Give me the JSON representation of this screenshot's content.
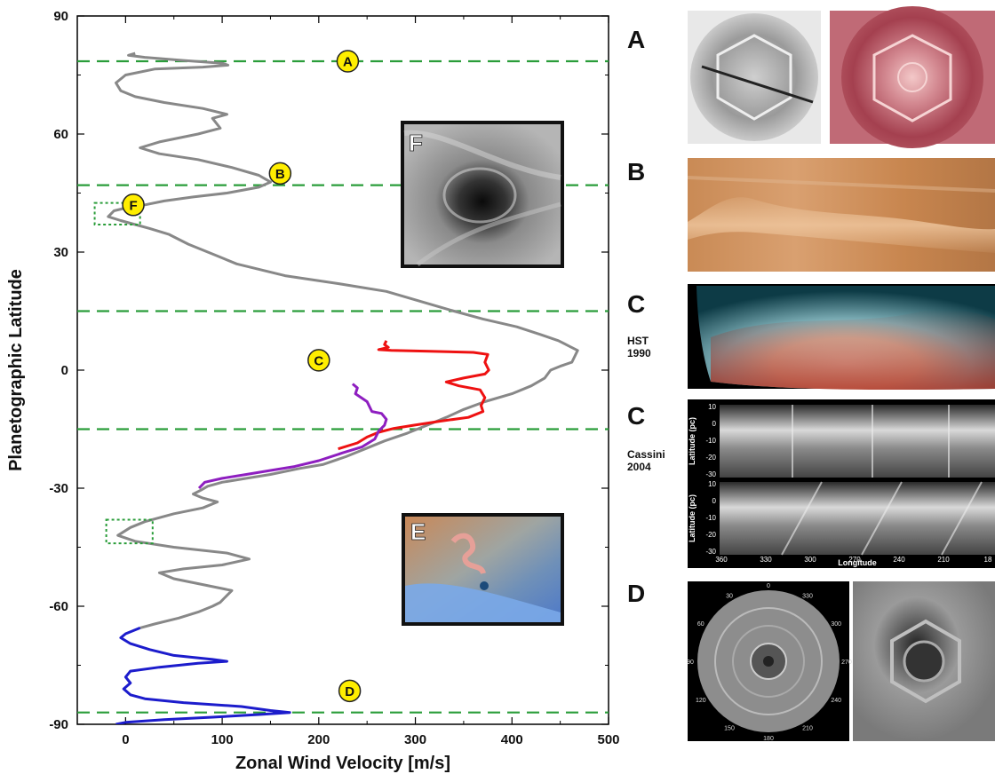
{
  "chart_data": {
    "type": "line",
    "xlabel": "Zonal Wind Velocity [m/s]",
    "ylabel": "Planetographic Latitude",
    "xlim": [
      -50,
      500
    ],
    "ylim": [
      -90,
      90
    ],
    "xticks": [
      0,
      100,
      200,
      300,
      400,
      500
    ],
    "yticks": [
      90,
      60,
      30,
      0,
      -30,
      -60,
      -90
    ],
    "grid": false,
    "legend": "none",
    "colors": {
      "profile_gray": "#888888",
      "profile_blue": "#1c1ccc",
      "profile_red": "#ee1111",
      "profile_purple": "#8e1ec0",
      "reference_lines": "#2a9d3a",
      "marker_fill": "#ffee00"
    },
    "series": [
      {
        "points": [
          [
            10,
            80.5
          ],
          [
            3,
            80
          ],
          [
            20,
            79.5
          ],
          [
            60,
            78.7
          ],
          [
            100,
            78
          ],
          [
            106,
            77.5
          ],
          [
            80,
            77
          ],
          [
            30,
            76.5
          ],
          [
            0,
            75
          ],
          [
            -10,
            73
          ],
          [
            -5,
            71
          ],
          [
            10,
            69.5
          ],
          [
            40,
            68
          ],
          [
            80,
            66.5
          ],
          [
            105,
            65
          ],
          [
            90,
            64
          ],
          [
            98,
            61.5
          ],
          [
            75,
            60
          ],
          [
            35,
            58
          ],
          [
            15,
            56.5
          ],
          [
            35,
            55
          ],
          [
            75,
            53.5
          ],
          [
            110,
            51.5
          ],
          [
            138,
            49.5
          ],
          [
            150,
            47.8
          ],
          [
            138,
            46.5
          ],
          [
            105,
            45
          ],
          [
            70,
            44
          ],
          [
            40,
            43
          ],
          [
            20,
            42
          ],
          [
            5,
            41.5
          ],
          [
            -12,
            40.5
          ],
          [
            -18,
            39
          ],
          [
            -5,
            38
          ],
          [
            10,
            37
          ],
          [
            25,
            36
          ],
          [
            45,
            34.5
          ],
          [
            65,
            32
          ],
          [
            95,
            29
          ],
          [
            115,
            27
          ],
          [
            165,
            24
          ],
          [
            220,
            22
          ],
          [
            270,
            20
          ],
          [
            305,
            17.5
          ],
          [
            340,
            15
          ],
          [
            370,
            13
          ],
          [
            405,
            11
          ],
          [
            430,
            9
          ],
          [
            448,
            7.5
          ],
          [
            460,
            6
          ],
          [
            468,
            5
          ],
          [
            462,
            2
          ],
          [
            450,
            1
          ],
          [
            440,
            0
          ],
          [
            434,
            -2
          ],
          [
            420,
            -4
          ],
          [
            400,
            -6
          ],
          [
            372,
            -8
          ],
          [
            350,
            -10
          ],
          [
            332,
            -12
          ],
          [
            312,
            -14
          ],
          [
            292,
            -16
          ],
          [
            268,
            -18
          ],
          [
            248,
            -20
          ],
          [
            228,
            -22
          ],
          [
            204,
            -24
          ],
          [
            180,
            -25
          ],
          [
            150,
            -26.5
          ],
          [
            125,
            -27.5
          ],
          [
            100,
            -28.5
          ],
          [
            85,
            -29.5
          ],
          [
            78,
            -30.5
          ],
          [
            70,
            -31.5
          ],
          [
            80,
            -32.5
          ],
          [
            95,
            -33.5
          ],
          [
            80,
            -35
          ],
          [
            50,
            -36.5
          ],
          [
            20,
            -38.5
          ],
          [
            5,
            -40
          ],
          [
            -8,
            -42
          ],
          [
            10,
            -43.5
          ],
          [
            50,
            -45
          ],
          [
            105,
            -46.5
          ],
          [
            128,
            -48
          ],
          [
            100,
            -49.5
          ],
          [
            60,
            -50.5
          ],
          [
            35,
            -51.5
          ],
          [
            50,
            -53
          ],
          [
            80,
            -54.5
          ],
          [
            110,
            -56
          ],
          [
            104,
            -57.5
          ],
          [
            98,
            -59
          ],
          [
            90,
            -60
          ],
          [
            75,
            -61.5
          ],
          [
            55,
            -63
          ],
          [
            30,
            -64.5
          ],
          [
            15,
            -65.5
          ]
        ]
      },
      {
        "points": [
          [
            15,
            -65.5
          ],
          [
            0,
            -67
          ],
          [
            -5,
            -68
          ],
          [
            5,
            -69.5
          ],
          [
            25,
            -71
          ],
          [
            50,
            -72.5
          ],
          [
            90,
            -73.5
          ],
          [
            105,
            -74
          ],
          [
            75,
            -74.5
          ],
          [
            35,
            -75.5
          ],
          [
            5,
            -76.5
          ],
          [
            0,
            -78
          ],
          [
            5,
            -79.5
          ],
          [
            -2,
            -81
          ],
          [
            5,
            -82.5
          ],
          [
            20,
            -83.5
          ],
          [
            60,
            -84.5
          ],
          [
            120,
            -85.5
          ],
          [
            150,
            -86.5
          ],
          [
            170,
            -87
          ],
          [
            140,
            -87.5
          ],
          [
            90,
            -88.2
          ],
          [
            40,
            -88.8
          ],
          [
            0,
            -89.5
          ],
          [
            -10,
            -90
          ]
        ]
      },
      {
        "points": [
          [
            270,
            7.5
          ],
          [
            268,
            6.5
          ],
          [
            272,
            5.8
          ],
          [
            262,
            5.2
          ],
          [
            275,
            5
          ],
          [
            315,
            4.8
          ],
          [
            360,
            4.5
          ],
          [
            375,
            4
          ],
          [
            372,
            2
          ],
          [
            376,
            0
          ],
          [
            372,
            -1
          ],
          [
            350,
            -2
          ],
          [
            332,
            -3
          ],
          [
            345,
            -4
          ],
          [
            367,
            -5
          ],
          [
            372,
            -7
          ],
          [
            368,
            -9
          ],
          [
            370,
            -10.5
          ],
          [
            355,
            -12
          ],
          [
            325,
            -13
          ],
          [
            298,
            -14
          ],
          [
            278,
            -14.8
          ],
          [
            262,
            -15.8
          ],
          [
            250,
            -17
          ],
          [
            240,
            -18.5
          ],
          [
            220,
            -20
          ]
        ]
      },
      {
        "points": [
          [
            235,
            -3.5
          ],
          [
            240,
            -4.5
          ],
          [
            238,
            -6
          ],
          [
            250,
            -8
          ],
          [
            255,
            -10.5
          ],
          [
            265,
            -11
          ],
          [
            270,
            -12.5
          ],
          [
            268,
            -14
          ],
          [
            262,
            -15.5
          ],
          [
            258,
            -17.5
          ],
          [
            245,
            -19.5
          ],
          [
            225,
            -21
          ],
          [
            200,
            -23
          ],
          [
            175,
            -24.5
          ],
          [
            150,
            -25.5
          ],
          [
            125,
            -26.5
          ],
          [
            100,
            -27.5
          ],
          [
            82,
            -28.5
          ],
          [
            76,
            -30
          ]
        ]
      }
    ],
    "reference_lines_latitude": [
      78.5,
      47,
      15,
      -15,
      -87
    ],
    "markers": [
      {
        "label": "A",
        "x": 230,
        "y": 78.5
      },
      {
        "label": "B",
        "x": 160,
        "y": 50
      },
      {
        "label": "F",
        "x": 8,
        "y": 42
      },
      {
        "label": "C",
        "x": 200,
        "y": 2.5
      },
      {
        "label": "D",
        "x": 232,
        "y": -81.5
      }
    ],
    "dotted_boxes": [
      {
        "x": [
          -32,
          15
        ],
        "y": [
          37,
          42.5
        ]
      },
      {
        "x": [
          -20,
          28
        ],
        "y": [
          -44,
          -38
        ]
      }
    ]
  },
  "insets": {
    "f_label": "F",
    "e_label": "E"
  },
  "panels": {
    "a_letter": "A",
    "b_letter": "B",
    "c1_letter": "C",
    "c1_caption_line1": "HST",
    "c1_caption_line2": "1990",
    "c2_letter": "C",
    "c2_caption_line1": "Cassini",
    "c2_caption_line2": "2004",
    "d_letter": "D",
    "cassini_plot": {
      "ylabel": "Latitude (pc)",
      "xlabel": "Longitude",
      "yticks_top": [
        "10",
        "0",
        "-10",
        "-20",
        "-30"
      ],
      "yticks_bottom": [
        "10",
        "0",
        "-10",
        "-20",
        "-30"
      ],
      "xticks": [
        "360",
        "330",
        "300",
        "270",
        "240",
        "210",
        "18"
      ]
    },
    "polar_labels": [
      "0",
      "30",
      "330",
      "60",
      "300",
      "90",
      "270",
      "120",
      "240",
      "150",
      "180",
      "210"
    ]
  }
}
